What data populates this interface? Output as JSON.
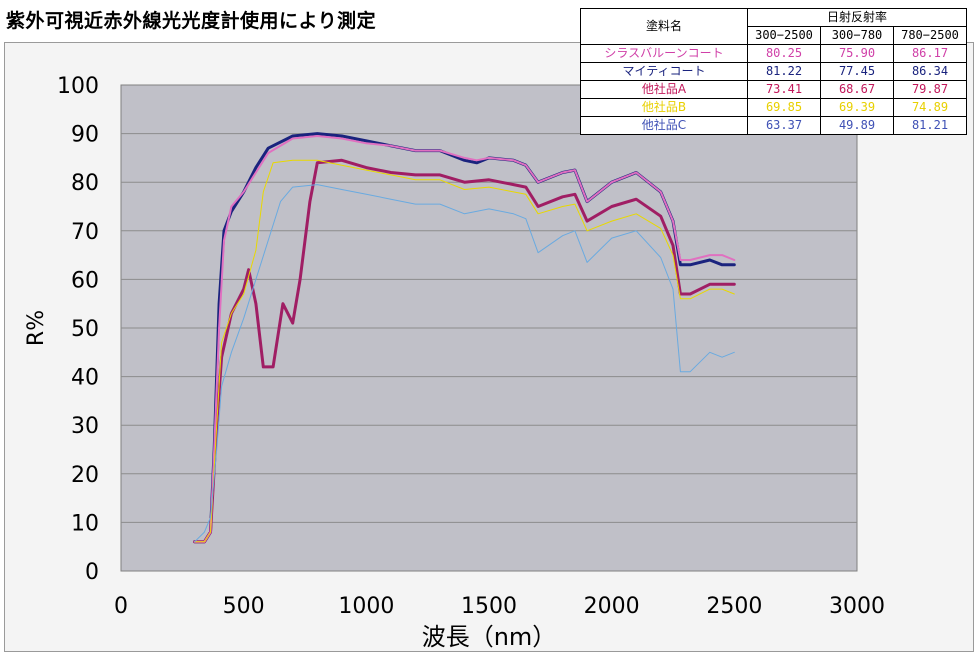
{
  "title": "紫外可視近赤外線光光度計使用により測定",
  "table": {
    "header_name": "塗料名",
    "header_group": "日射反射率",
    "ranges": [
      "300−2500",
      "300−780",
      "780−2500"
    ],
    "rows": [
      {
        "name": "シラスバルーンコート",
        "values": [
          "80.25",
          "75.90",
          "86.17"
        ],
        "color": "#d040a8"
      },
      {
        "name": "マイティコート",
        "values": [
          "81.22",
          "77.45",
          "86.34"
        ],
        "color": "#1a237e"
      },
      {
        "name": "他社品A",
        "values": [
          "73.41",
          "68.67",
          "79.87"
        ],
        "color": "#c2185b"
      },
      {
        "name": "他社品B",
        "values": [
          "69.85",
          "69.39",
          "74.89"
        ],
        "color": "#e8d000"
      },
      {
        "name": "他社品C",
        "values": [
          "63.37",
          "49.89",
          "81.21"
        ],
        "color": "#3f51b5"
      }
    ]
  },
  "chart_data": {
    "type": "line",
    "xlabel": "波長（nm）",
    "ylabel": "R%",
    "xlim": [
      0,
      3000
    ],
    "ylim": [
      0,
      100
    ],
    "xticks": [
      "0",
      "500",
      "1000",
      "1500",
      "2000",
      "2500",
      "3000"
    ],
    "yticks": [
      "0",
      "10",
      "20",
      "30",
      "40",
      "50",
      "60",
      "70",
      "80",
      "90",
      "100"
    ],
    "grid": true,
    "plot_bg": "#c0c0c8",
    "series": [
      {
        "name": "シラスバルーンコート",
        "color": "#e070c0",
        "width": 2,
        "points": [
          [
            300,
            6
          ],
          [
            340,
            6
          ],
          [
            365,
            8
          ],
          [
            380,
            25
          ],
          [
            400,
            50
          ],
          [
            420,
            68
          ],
          [
            450,
            75
          ],
          [
            500,
            78
          ],
          [
            550,
            82
          ],
          [
            600,
            86
          ],
          [
            700,
            89
          ],
          [
            800,
            89.5
          ],
          [
            900,
            89
          ],
          [
            1000,
            88
          ],
          [
            1100,
            87.5
          ],
          [
            1200,
            86.5
          ],
          [
            1300,
            86.5
          ],
          [
            1400,
            85
          ],
          [
            1450,
            84.5
          ],
          [
            1500,
            85
          ],
          [
            1600,
            84.5
          ],
          [
            1650,
            83.5
          ],
          [
            1700,
            80
          ],
          [
            1800,
            82
          ],
          [
            1850,
            82.5
          ],
          [
            1900,
            76
          ],
          [
            2000,
            80
          ],
          [
            2100,
            82
          ],
          [
            2200,
            78
          ],
          [
            2250,
            72
          ],
          [
            2280,
            64
          ],
          [
            2320,
            64
          ],
          [
            2400,
            65
          ],
          [
            2450,
            65
          ],
          [
            2500,
            64
          ]
        ]
      },
      {
        "name": "マイティコート",
        "color": "#1a237e",
        "width": 3,
        "points": [
          [
            300,
            6
          ],
          [
            340,
            6
          ],
          [
            365,
            8
          ],
          [
            380,
            25
          ],
          [
            400,
            55
          ],
          [
            420,
            70
          ],
          [
            450,
            74
          ],
          [
            500,
            78
          ],
          [
            550,
            83
          ],
          [
            600,
            87
          ],
          [
            700,
            89.5
          ],
          [
            800,
            90
          ],
          [
            900,
            89.5
          ],
          [
            1000,
            88.5
          ],
          [
            1100,
            87.5
          ],
          [
            1200,
            86.5
          ],
          [
            1300,
            86.5
          ],
          [
            1400,
            84.5
          ],
          [
            1450,
            84
          ],
          [
            1500,
            85
          ],
          [
            1600,
            84.5
          ],
          [
            1650,
            83.5
          ],
          [
            1700,
            80
          ],
          [
            1800,
            82
          ],
          [
            1850,
            82.5
          ],
          [
            1900,
            76
          ],
          [
            2000,
            80
          ],
          [
            2100,
            82
          ],
          [
            2200,
            78
          ],
          [
            2250,
            72
          ],
          [
            2280,
            63
          ],
          [
            2320,
            63
          ],
          [
            2400,
            64
          ],
          [
            2450,
            63
          ],
          [
            2500,
            63
          ]
        ]
      },
      {
        "name": "他社品A",
        "color": "#a01e64",
        "width": 3,
        "points": [
          [
            300,
            6
          ],
          [
            340,
            6
          ],
          [
            365,
            8
          ],
          [
            390,
            30
          ],
          [
            410,
            44
          ],
          [
            450,
            53
          ],
          [
            500,
            58
          ],
          [
            520,
            62
          ],
          [
            550,
            55
          ],
          [
            580,
            42
          ],
          [
            620,
            42
          ],
          [
            660,
            55
          ],
          [
            700,
            51
          ],
          [
            730,
            60
          ],
          [
            770,
            76
          ],
          [
            800,
            84
          ],
          [
            900,
            84.5
          ],
          [
            1000,
            83
          ],
          [
            1100,
            82
          ],
          [
            1200,
            81.5
          ],
          [
            1300,
            81.5
          ],
          [
            1400,
            80
          ],
          [
            1500,
            80.5
          ],
          [
            1600,
            79.5
          ],
          [
            1650,
            79
          ],
          [
            1700,
            75
          ],
          [
            1800,
            77
          ],
          [
            1850,
            77.5
          ],
          [
            1900,
            72
          ],
          [
            2000,
            75
          ],
          [
            2100,
            76.5
          ],
          [
            2200,
            73
          ],
          [
            2250,
            67
          ],
          [
            2280,
            57
          ],
          [
            2320,
            57
          ],
          [
            2400,
            59
          ],
          [
            2450,
            59
          ],
          [
            2500,
            59
          ]
        ]
      },
      {
        "name": "他社品B",
        "color": "#e8d800",
        "width": 1,
        "points": [
          [
            300,
            6
          ],
          [
            340,
            6
          ],
          [
            365,
            8
          ],
          [
            390,
            30
          ],
          [
            410,
            47
          ],
          [
            450,
            53
          ],
          [
            500,
            57
          ],
          [
            550,
            66
          ],
          [
            580,
            78
          ],
          [
            620,
            84
          ],
          [
            700,
            84.5
          ],
          [
            800,
            84.5
          ],
          [
            900,
            83.5
          ],
          [
            1000,
            82.5
          ],
          [
            1100,
            81.5
          ],
          [
            1200,
            80.5
          ],
          [
            1300,
            80.5
          ],
          [
            1400,
            78.5
          ],
          [
            1500,
            79
          ],
          [
            1600,
            78
          ],
          [
            1650,
            77.5
          ],
          [
            1700,
            73.5
          ],
          [
            1800,
            75
          ],
          [
            1850,
            75.5
          ],
          [
            1900,
            70
          ],
          [
            2000,
            72
          ],
          [
            2100,
            73.5
          ],
          [
            2200,
            70.5
          ],
          [
            2250,
            65
          ],
          [
            2280,
            56
          ],
          [
            2320,
            56
          ],
          [
            2400,
            58
          ],
          [
            2450,
            58
          ],
          [
            2500,
            57
          ]
        ]
      },
      {
        "name": "他社品C",
        "color": "#6aaae0",
        "width": 1,
        "points": [
          [
            300,
            6
          ],
          [
            340,
            8
          ],
          [
            365,
            11
          ],
          [
            390,
            25
          ],
          [
            410,
            38
          ],
          [
            450,
            45
          ],
          [
            500,
            52
          ],
          [
            550,
            60
          ],
          [
            600,
            68
          ],
          [
            650,
            76
          ],
          [
            700,
            79
          ],
          [
            800,
            79.5
          ],
          [
            900,
            78.5
          ],
          [
            1000,
            77.5
          ],
          [
            1100,
            76.5
          ],
          [
            1200,
            75.5
          ],
          [
            1300,
            75.5
          ],
          [
            1400,
            73.5
          ],
          [
            1500,
            74.5
          ],
          [
            1600,
            73.5
          ],
          [
            1650,
            72.5
          ],
          [
            1700,
            65.5
          ],
          [
            1800,
            69
          ],
          [
            1850,
            70
          ],
          [
            1900,
            63.5
          ],
          [
            2000,
            68.5
          ],
          [
            2100,
            70
          ],
          [
            2200,
            64.5
          ],
          [
            2250,
            58
          ],
          [
            2280,
            41
          ],
          [
            2320,
            41
          ],
          [
            2400,
            45
          ],
          [
            2450,
            44
          ],
          [
            2500,
            45
          ]
        ]
      }
    ]
  }
}
